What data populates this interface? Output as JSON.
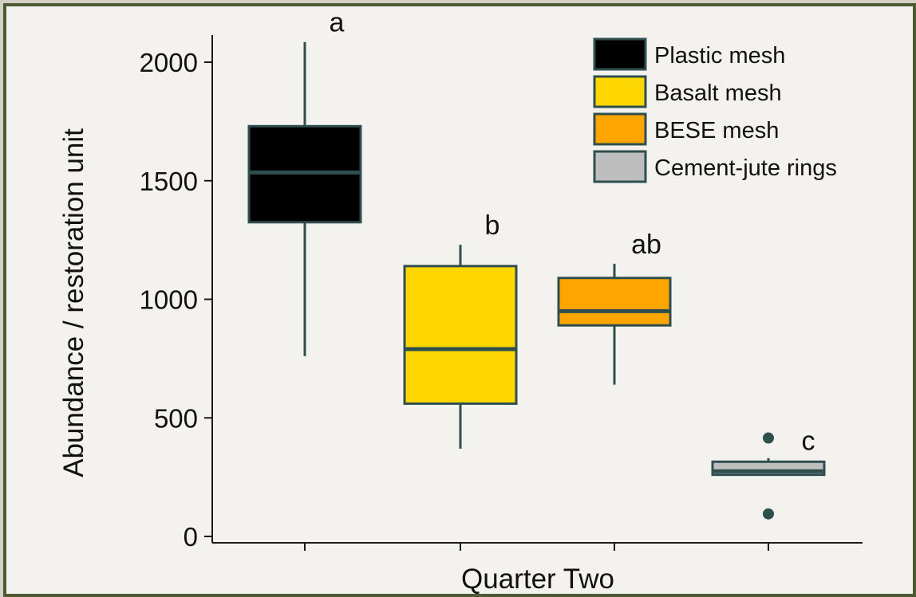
{
  "chart_data": {
    "type": "boxplot",
    "title": "",
    "xlabel": "Quarter Two",
    "ylabel": "Abundance / restoration unit",
    "ylim": [
      0,
      2000
    ],
    "yticks": [
      0,
      500,
      1000,
      1500,
      2000
    ],
    "grid": false,
    "legend_position": "top-right",
    "series": [
      {
        "name": "Plastic mesh",
        "color": "#000000",
        "min": 760,
        "q1": 1325,
        "median": 1535,
        "q3": 1730,
        "max": 2085,
        "outliers": [],
        "letter": "a"
      },
      {
        "name": "Basalt mesh",
        "color": "#ffd700",
        "min": 370,
        "q1": 560,
        "median": 790,
        "q3": 1140,
        "max": 1230,
        "outliers": [],
        "letter": "b"
      },
      {
        "name": "BESE mesh",
        "color": "#ffa500",
        "min": 640,
        "q1": 890,
        "median": 950,
        "q3": 1090,
        "max": 1150,
        "outliers": [],
        "letter": "ab"
      },
      {
        "name": "Cement-jute rings",
        "color": "#bebebe",
        "min": 260,
        "q1": 260,
        "median": 275,
        "q3": 315,
        "max": 330,
        "outliers": [
          415,
          95
        ],
        "letter": "c"
      }
    ]
  }
}
